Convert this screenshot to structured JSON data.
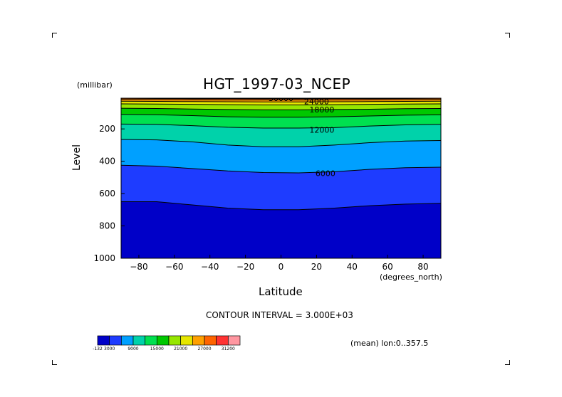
{
  "title": "HGT_1997-03_NCEP",
  "y_units": "(millibar)",
  "y_label": "Level",
  "x_label": "Latitude",
  "x_units": "(degrees_north)",
  "contour_interval_text": "CONTOUR INTERVAL = 3.000E+03",
  "mean_text": "(mean) lon:0..357.5",
  "chart_data": {
    "type": "contour",
    "xlim": [
      -90,
      90
    ],
    "ylim": [
      1000,
      10
    ],
    "x_ticks": [
      -80,
      -60,
      -40,
      -20,
      0,
      20,
      40,
      60,
      80
    ],
    "y_ticks": [
      200,
      400,
      600,
      800,
      1000
    ],
    "x_tick_labels": [
      "−80",
      "−60",
      "−40",
      "−20",
      "0",
      "20",
      "40",
      "60",
      "80"
    ],
    "y_tick_labels": [
      "200",
      "400",
      "600",
      "800",
      "1000"
    ],
    "contour_labels": [
      {
        "text": "30000",
        "x": 0,
        "y": 10
      },
      {
        "text": "24000",
        "x": 20,
        "y": 30
      },
      {
        "text": "18000",
        "x": 23,
        "y": 80
      },
      {
        "text": "12000",
        "x": 23,
        "y": 205
      },
      {
        "text": "6000",
        "x": 25,
        "y": 475
      }
    ],
    "levels": [
      -132,
      3000,
      6000,
      9000,
      12000,
      15000,
      18000,
      21000,
      24000,
      27000,
      30000,
      31200
    ],
    "colors": [
      "#0000c8",
      "#1e3cff",
      "#00a0ff",
      "#00d2aa",
      "#00e050",
      "#00c800",
      "#96e600",
      "#e6e600",
      "#ffa000",
      "#ff6400",
      "#ff3232",
      "#ff96a0"
    ],
    "colorbar_labels": [
      "-132",
      "3000",
      "9000",
      "15000",
      "21000",
      "27000",
      "31200"
    ],
    "contour_lines": [
      {
        "value": 3000,
        "points": [
          [
            -90,
            650
          ],
          [
            -70,
            650
          ],
          [
            -50,
            670
          ],
          [
            -30,
            690
          ],
          [
            -10,
            700
          ],
          [
            10,
            700
          ],
          [
            30,
            690
          ],
          [
            50,
            675
          ],
          [
            70,
            665
          ],
          [
            90,
            660
          ]
        ]
      },
      {
        "value": 6000,
        "points": [
          [
            -90,
            425
          ],
          [
            -70,
            430
          ],
          [
            -50,
            445
          ],
          [
            -30,
            460
          ],
          [
            -10,
            470
          ],
          [
            10,
            472
          ],
          [
            30,
            465
          ],
          [
            50,
            450
          ],
          [
            70,
            440
          ],
          [
            90,
            437
          ]
        ]
      },
      {
        "value": 9000,
        "points": [
          [
            -90,
            265
          ],
          [
            -70,
            268
          ],
          [
            -50,
            280
          ],
          [
            -30,
            300
          ],
          [
            -10,
            310
          ],
          [
            10,
            310
          ],
          [
            30,
            300
          ],
          [
            50,
            285
          ],
          [
            70,
            275
          ],
          [
            90,
            272
          ]
        ]
      },
      {
        "value": 12000,
        "points": [
          [
            -90,
            170
          ],
          [
            -70,
            172
          ],
          [
            -50,
            180
          ],
          [
            -30,
            190
          ],
          [
            -10,
            195
          ],
          [
            10,
            195
          ],
          [
            30,
            192
          ],
          [
            50,
            182
          ],
          [
            70,
            175
          ],
          [
            90,
            172
          ]
        ]
      },
      {
        "value": 15000,
        "points": [
          [
            -90,
            110
          ],
          [
            -70,
            112
          ],
          [
            -50,
            118
          ],
          [
            -30,
            125
          ],
          [
            -10,
            128
          ],
          [
            10,
            128
          ],
          [
            30,
            125
          ],
          [
            50,
            120
          ],
          [
            70,
            115
          ],
          [
            90,
            113
          ]
        ]
      },
      {
        "value": 18000,
        "points": [
          [
            -90,
            72
          ],
          [
            -70,
            74
          ],
          [
            -50,
            77
          ],
          [
            -30,
            80
          ],
          [
            -10,
            82
          ],
          [
            10,
            82
          ],
          [
            30,
            80
          ],
          [
            50,
            78
          ],
          [
            70,
            75
          ],
          [
            90,
            74
          ]
        ]
      },
      {
        "value": 21000,
        "points": [
          [
            -90,
            45
          ],
          [
            -70,
            46
          ],
          [
            -50,
            48
          ],
          [
            -30,
            50
          ],
          [
            -10,
            52
          ],
          [
            10,
            52
          ],
          [
            30,
            50
          ],
          [
            50,
            48
          ],
          [
            70,
            46
          ],
          [
            90,
            45
          ]
        ]
      },
      {
        "value": 24000,
        "points": [
          [
            -90,
            29
          ],
          [
            -70,
            30
          ],
          [
            -50,
            31
          ],
          [
            -30,
            32
          ],
          [
            -10,
            33
          ],
          [
            10,
            33
          ],
          [
            30,
            32
          ],
          [
            50,
            31
          ],
          [
            70,
            30
          ],
          [
            90,
            29
          ]
        ]
      },
      {
        "value": 27000,
        "points": [
          [
            -90,
            18
          ],
          [
            -70,
            19
          ],
          [
            -50,
            20
          ],
          [
            -30,
            21
          ],
          [
            -10,
            21
          ],
          [
            10,
            21
          ],
          [
            30,
            21
          ],
          [
            50,
            20
          ],
          [
            70,
            19
          ],
          [
            90,
            18
          ]
        ]
      },
      {
        "value": 30000,
        "points": [
          [
            -90,
            11
          ],
          [
            -70,
            12
          ],
          [
            -50,
            13
          ],
          [
            -30,
            13
          ],
          [
            -10,
            14
          ],
          [
            10,
            14
          ],
          [
            30,
            13
          ],
          [
            50,
            13
          ],
          [
            70,
            12
          ],
          [
            90,
            11
          ]
        ]
      }
    ],
    "grid": false
  }
}
